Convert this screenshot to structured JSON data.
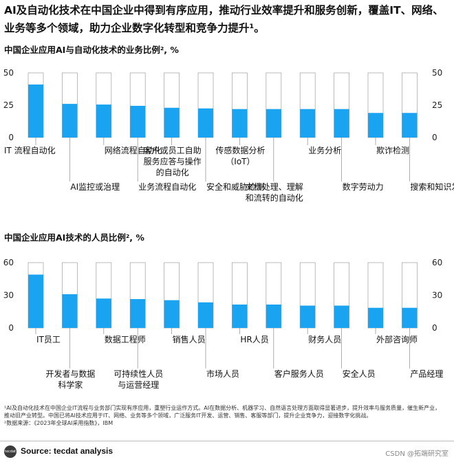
{
  "headline": "AI及自动化技术在中国企业中得到有序应用，推动行业效率提升和服务创新，覆盖IT、网络、业务等多个领域，助力企业数字化转型和竞争力提升¹。",
  "footnote": "¹AI及自动化技术在中国企业IT流程与业务部门实现有序应用，重塑行业运作方式。AI在数据分析、机器学习、自然语言处理方面取得显著进步，提升效率与服务质量，催生新产业，推动旧产业转型。中国已将AI技术应用于IT、网络、业务等多个领域，广泛服务IT开发、运营、销售、客服等部门，提升企业竞争力，迎接数字化挑战。",
  "footnote2": "²数据来源：《2023年全球AI采用指数》，IBM",
  "source": "Source: tecdat analysis",
  "logo_text": "tecdat",
  "watermark": "CSDN @拓端研究室",
  "colors": {
    "bar": "#1aa3f0",
    "track_border": "#aaaaaa",
    "leader": "#999999"
  },
  "chart_data": [
    {
      "type": "bar",
      "title": "中国企业应用AI与自动化技术的业务比例², %",
      "ylim": [
        0,
        50
      ],
      "yticks": [
        "50",
        "25",
        "0"
      ],
      "ytick_values": [
        50,
        25,
        0
      ],
      "right_axis": true,
      "categories": [
        "IT流程自动化",
        "AI监控或治理",
        "网络流程自动化",
        "业务流程自动化",
        "客户或员工自助服务应答与操作的自动化",
        "安全和威胁检测",
        "传感数据分析（IoT）",
        "文档处理、理解和流转的自动化",
        "业务分析",
        "数字劳动力",
        "欺诈检测",
        "搜索和知识发现"
      ],
      "labels": [
        [
          "IT 流程自动化"
        ],
        [
          "AI监控或治理"
        ],
        [
          "网络流程自动化"
        ],
        [
          "业务流程自动化"
        ],
        [
          "客户或员工自助",
          "服务应答与操作",
          "的自动化"
        ],
        [
          "安全和威胁检测"
        ],
        [
          "传感数据分析",
          "（IoT）"
        ],
        [
          "文档处理、理解",
          "和流转的自动化"
        ],
        [
          "业务分析"
        ],
        [
          "数字劳动力"
        ],
        [
          "欺诈检测"
        ],
        [
          "搜索和知识发现"
        ]
      ],
      "values": [
        41,
        26,
        25.5,
        24.5,
        23,
        22.5,
        22,
        22,
        22,
        22,
        19,
        19
      ]
    },
    {
      "type": "bar",
      "title": "中国企业应用AI技术的人员比例², %",
      "ylim": [
        0,
        60
      ],
      "yticks": [
        "60",
        "30",
        "0"
      ],
      "ytick_values": [
        60,
        30,
        0
      ],
      "right_axis": true,
      "categories": [
        "IT员工",
        "开发者与数据科学家",
        "数据工程师",
        "可持续性人员与运营经理",
        "销售人员",
        "市场人员",
        "HR人员",
        "客户服务人员",
        "财务人员",
        "安全人员",
        "外部咨询师",
        "产品经理"
      ],
      "labels": [
        [
          "IT员工"
        ],
        [
          "开发者与数据",
          "科学家"
        ],
        [
          "数据工程师"
        ],
        [
          "可持续性人员",
          "与运营经理"
        ],
        [
          "销售人员"
        ],
        [
          "市场人员"
        ],
        [
          "HR人员"
        ],
        [
          "客户服务人员"
        ],
        [
          "财务人员"
        ],
        [
          "安全人员"
        ],
        [
          "外部咨询师"
        ],
        [
          "产品经理"
        ]
      ],
      "values": [
        49,
        31,
        27,
        26.5,
        25.5,
        23.5,
        21.5,
        21.5,
        20.5,
        20.5,
        18.5,
        18.5
      ]
    }
  ]
}
